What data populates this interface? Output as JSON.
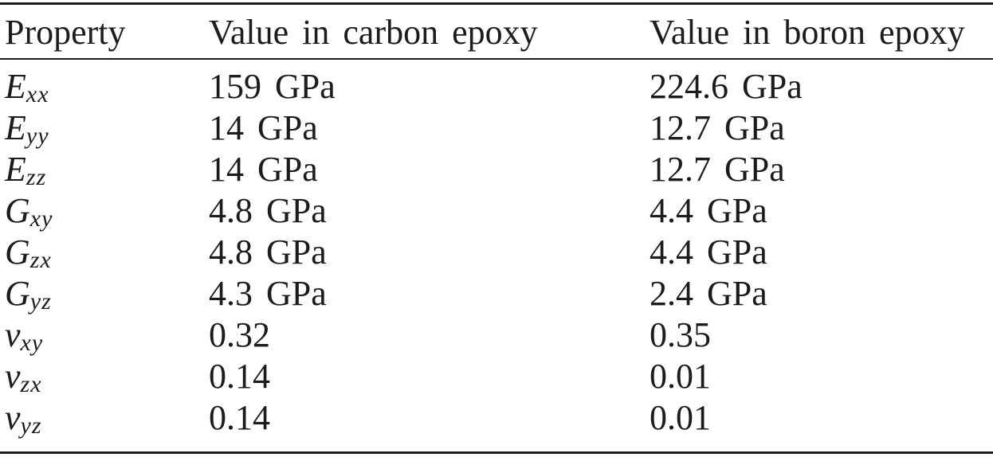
{
  "table": {
    "columns": [
      "Property",
      "Value in carbon epoxy",
      "Value in boron epoxy"
    ],
    "rows": [
      {
        "base": "E",
        "sub": "xx",
        "carbon": "159 GPa",
        "boron": "224.6 GPa"
      },
      {
        "base": "E",
        "sub": "yy",
        "carbon": "14 GPa",
        "boron": "12.7 GPa"
      },
      {
        "base": "E",
        "sub": "zz",
        "carbon": "14 GPa",
        "boron": "12.7 GPa"
      },
      {
        "base": "G",
        "sub": "xy",
        "carbon": "4.8 GPa",
        "boron": "4.4 GPa"
      },
      {
        "base": "G",
        "sub": "zx",
        "carbon": "4.8 GPa",
        "boron": "4.4 GPa"
      },
      {
        "base": "G",
        "sub": "yz",
        "carbon": "4.3 GPa",
        "boron": "2.4 GPa"
      },
      {
        "base": "v",
        "sub": "xy",
        "carbon": "0.32",
        "boron": "0.35"
      },
      {
        "base": "v",
        "sub": "zx",
        "carbon": "0.14",
        "boron": "0.01"
      },
      {
        "base": "v",
        "sub": "yz",
        "carbon": "0.14",
        "boron": "0.01"
      }
    ]
  },
  "chart_data": {
    "type": "table",
    "columns": [
      "Property",
      "Value in carbon epoxy",
      "Value in boron epoxy"
    ],
    "rows": [
      [
        "E_xx",
        "159 GPa",
        "224.6 GPa"
      ],
      [
        "E_yy",
        "14 GPa",
        "12.7 GPa"
      ],
      [
        "E_zz",
        "14 GPa",
        "12.7 GPa"
      ],
      [
        "G_xy",
        "4.8 GPa",
        "4.4 GPa"
      ],
      [
        "G_zx",
        "4.8 GPa",
        "4.4 GPa"
      ],
      [
        "G_yz",
        "4.3 GPa",
        "2.4 GPa"
      ],
      [
        "v_xy",
        "0.32",
        "0.35"
      ],
      [
        "v_zx",
        "0.14",
        "0.01"
      ],
      [
        "v_yz",
        "0.14",
        "0.01"
      ]
    ]
  }
}
